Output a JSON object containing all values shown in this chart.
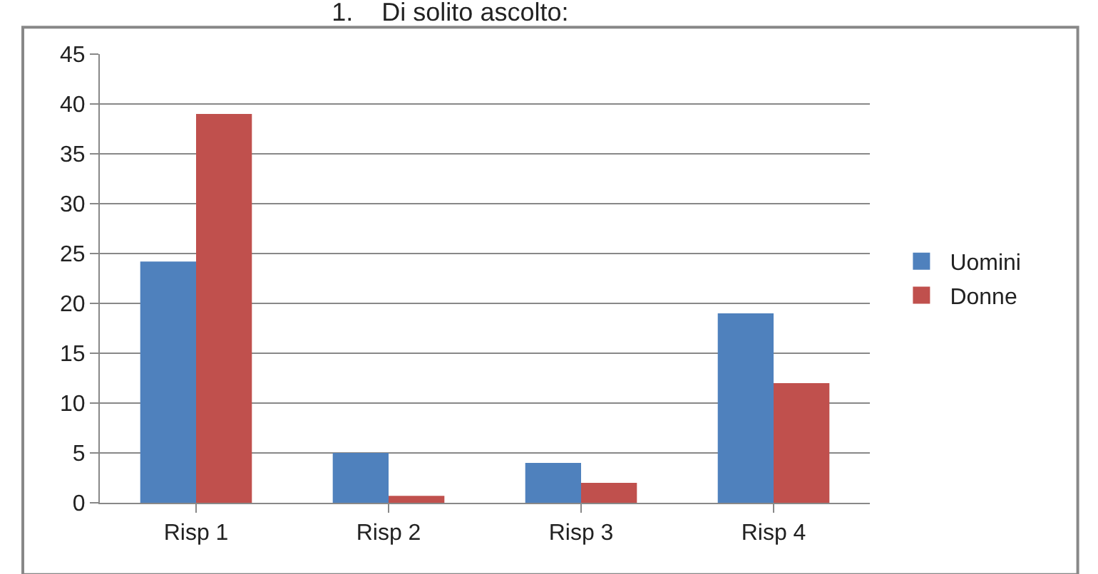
{
  "chart_data": {
    "type": "bar",
    "title": "1.    Di solito ascolto:",
    "categories": [
      "Risp 1",
      "Risp 2",
      "Risp 3",
      "Risp 4"
    ],
    "series": [
      {
        "name": "Uomini",
        "color": "#4f81bd",
        "values": [
          24.2,
          5,
          4,
          19
        ]
      },
      {
        "name": "Donne",
        "color": "#c0504d",
        "values": [
          39,
          0.7,
          2,
          12
        ]
      }
    ],
    "ylim": [
      0,
      45
    ],
    "yticks": [
      0,
      5,
      10,
      15,
      20,
      25,
      30,
      35,
      40,
      45
    ],
    "grid": "y",
    "legend": "right"
  }
}
